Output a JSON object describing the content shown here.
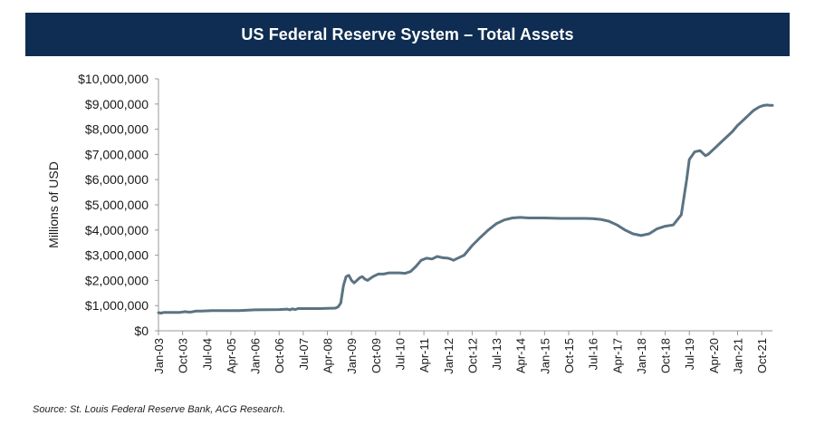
{
  "title": "US Federal Reserve System – Total Assets",
  "source": "Source: St. Louis Federal Reserve Bank, ACG Research.",
  "colors": {
    "title_bg": "#0f2d52",
    "line": "#5b7383",
    "axis": "#9a9a9a"
  },
  "chart_data": {
    "type": "line",
    "title": "US Federal Reserve System – Total Assets",
    "xlabel": "",
    "ylabel": "Millions of USD",
    "ylim": [
      0,
      10000000
    ],
    "yticks": [
      0,
      1000000,
      2000000,
      3000000,
      4000000,
      5000000,
      6000000,
      7000000,
      8000000,
      9000000,
      10000000
    ],
    "ytick_labels": [
      "$0",
      "$1,000,000",
      "$2,000,000",
      "$3,000,000",
      "$4,000,000",
      "$5,000,000",
      "$6,000,000",
      "$7,000,000",
      "$8,000,000",
      "$9,000,000",
      "$10,000,000"
    ],
    "x_month_range": [
      0,
      229
    ],
    "xticks": [
      0,
      9,
      18,
      27,
      36,
      45,
      54,
      63,
      72,
      81,
      90,
      99,
      108,
      117,
      126,
      135,
      144,
      153,
      162,
      171,
      180,
      189,
      198,
      207,
      216,
      225
    ],
    "xtick_labels": [
      "Jan-03",
      "Oct-03",
      "Jul-04",
      "Apr-05",
      "Jan-06",
      "Oct-06",
      "Jul-07",
      "Apr-08",
      "Jan-09",
      "Oct-09",
      "Jul-10",
      "Apr-11",
      "Jan-12",
      "Oct-12",
      "Jul-13",
      "Apr-14",
      "Jan-15",
      "Oct-15",
      "Jul-16",
      "Apr-17",
      "Jan-18",
      "Oct-18",
      "Jul-19",
      "Apr-20",
      "Jan-21",
      "Oct-21"
    ],
    "grid": false,
    "series": [
      {
        "name": "Total Assets",
        "x_unit": "months since Jan-03",
        "x": [
          0,
          1,
          2,
          5,
          8,
          10,
          11,
          12,
          14,
          16,
          20,
          24,
          30,
          36,
          45,
          48,
          49,
          50,
          51,
          52,
          54,
          56,
          60,
          66,
          67,
          68,
          69,
          70,
          71,
          72,
          73,
          75,
          76,
          77,
          78,
          80,
          82,
          84,
          86,
          88,
          90,
          92,
          94,
          96,
          98,
          100,
          102,
          104,
          106,
          108,
          109,
          110,
          111,
          114,
          116,
          117,
          120,
          123,
          126,
          129,
          132,
          135,
          138,
          141,
          144,
          147,
          150,
          153,
          156,
          159,
          162,
          165,
          168,
          171,
          174,
          177,
          180,
          183,
          186,
          189,
          192,
          195,
          197,
          198,
          200,
          202,
          204,
          205,
          206,
          207,
          208,
          210,
          212,
          214,
          216,
          217,
          219,
          220,
          221,
          222,
          224,
          225,
          226,
          227,
          228,
          229
        ],
        "values": [
          720000,
          700000,
          730000,
          730000,
          730000,
          760000,
          740000,
          740000,
          780000,
          780000,
          800000,
          800000,
          800000,
          830000,
          840000,
          860000,
          830000,
          870000,
          840000,
          880000,
          880000,
          880000,
          880000,
          900000,
          950000,
          1100000,
          1800000,
          2150000,
          2200000,
          2000000,
          1900000,
          2100000,
          2150000,
          2050000,
          2000000,
          2150000,
          2250000,
          2250000,
          2300000,
          2300000,
          2300000,
          2280000,
          2350000,
          2550000,
          2800000,
          2880000,
          2850000,
          2950000,
          2900000,
          2880000,
          2850000,
          2800000,
          2850000,
          3000000,
          3250000,
          3380000,
          3700000,
          4000000,
          4250000,
          4400000,
          4480000,
          4500000,
          4480000,
          4480000,
          4480000,
          4470000,
          4460000,
          4460000,
          4460000,
          4460000,
          4450000,
          4420000,
          4350000,
          4200000,
          4000000,
          3850000,
          3780000,
          3850000,
          4050000,
          4150000,
          4200000,
          4600000,
          6000000,
          6800000,
          7100000,
          7150000,
          6950000,
          7000000,
          7100000,
          7200000,
          7300000,
          7500000,
          7700000,
          7900000,
          8150000,
          8250000,
          8450000,
          8550000,
          8650000,
          8750000,
          8880000,
          8920000,
          8950000,
          8960000,
          8950000,
          8950000
        ]
      }
    ]
  }
}
